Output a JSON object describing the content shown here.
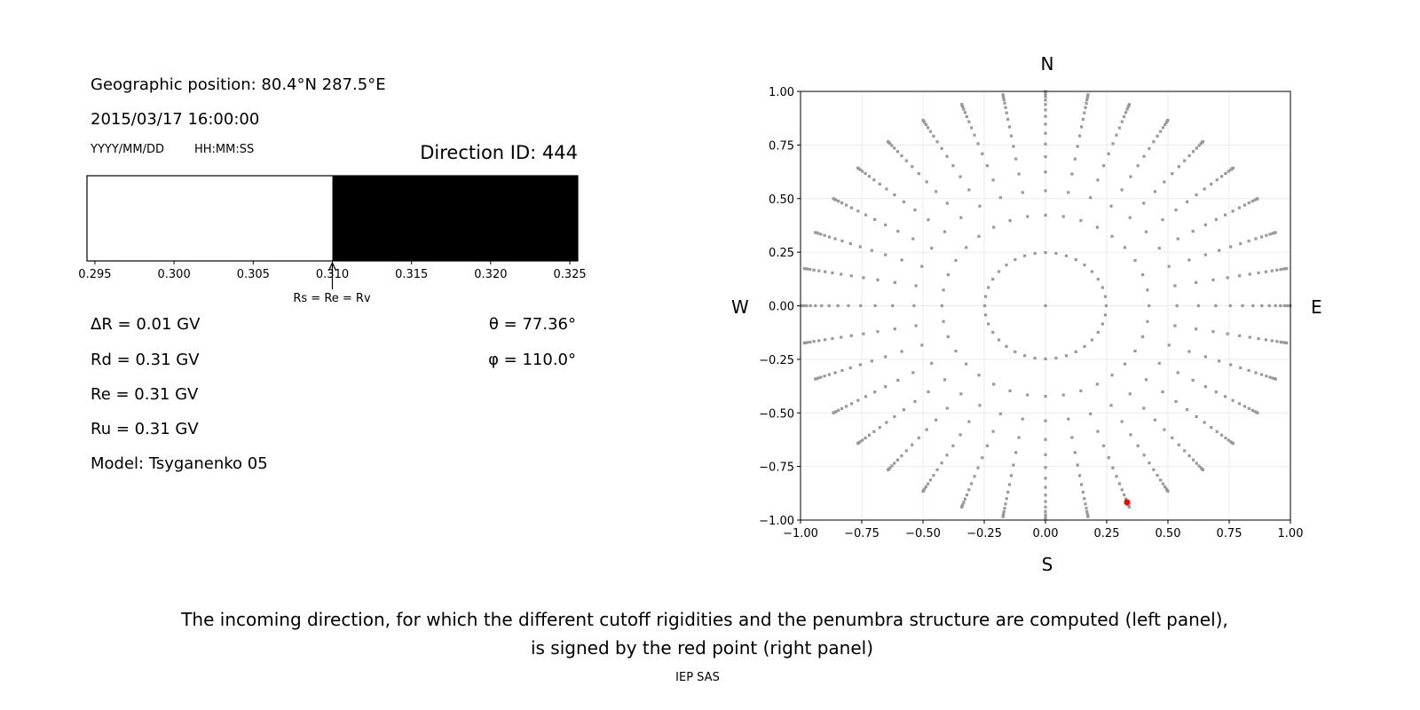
{
  "left_panel": {
    "geo_position": "Geographic position: 80.4°N 287.5°E",
    "datetime": "2015/03/17 16:00:00",
    "date_format": "YYYY/MM/DD",
    "time_format": "HH:MM:SS",
    "direction_id": "Direction ID: 444",
    "delta_r": "ΔR = 0.01 GV",
    "rd": "Rd = 0.31 GV",
    "re": "Re = 0.31 GV",
    "ru": "Ru = 0.31 GV",
    "model": "Model: Tsyganenko 05",
    "theta": "θ = 77.36°",
    "phi": "φ = 110.0°",
    "arrow_label": "Rs = Re = Rv"
  },
  "caption": {
    "line1": "The incoming direction, for which the different cutoff rigidities and the penumbra structure are computed (left panel),",
    "line2": "is signed by the red point (right panel)",
    "credit": "IEP SAS"
  },
  "chart_data": [
    {
      "type": "bar",
      "xlim": [
        0.2945,
        0.3255
      ],
      "tick_labels": [
        "0.295",
        "0.300",
        "0.305",
        "0.310",
        "0.315",
        "0.320",
        "0.325"
      ],
      "ticks": [
        0.295,
        0.3,
        0.305,
        0.31,
        0.315,
        0.32,
        0.325
      ],
      "segments": [
        {
          "from": 0.2945,
          "to": 0.31,
          "color": "#ffffff"
        },
        {
          "from": 0.31,
          "to": 0.3255,
          "color": "#000000"
        }
      ],
      "arrow_at": 0.31
    },
    {
      "type": "scatter",
      "xlim": [
        -1.0,
        1.0
      ],
      "ylim": [
        -1.0,
        1.0
      ],
      "grid": true,
      "tick_labels_x": [
        "−1.00",
        "−0.75",
        "−0.50",
        "−0.25",
        "0.00",
        "0.25",
        "0.50",
        "0.75",
        "1.00"
      ],
      "tick_labels_y": [
        "−1.00",
        "−0.75",
        "−0.50",
        "−0.25",
        "0.00",
        "0.25",
        "0.50",
        "0.75",
        "1.00"
      ],
      "ticks": [
        -1.0,
        -0.75,
        -0.5,
        -0.25,
        0,
        0.25,
        0.5,
        0.75,
        1.0
      ],
      "compass": {
        "north": "N",
        "south": "S",
        "west": "W",
        "east": "E"
      },
      "grid_points": {
        "azimuth_step_deg": 10,
        "cos_zenith": [
          0.96875,
          0.90625,
          0.84375,
          0.78125,
          0.71875,
          0.65625,
          0.59375,
          0.53125,
          0.46875,
          0.40625,
          0.34375,
          0.28125,
          0.21875,
          0.15625,
          0.09375,
          0.03125
        ],
        "include_center": true,
        "color": "#999999"
      },
      "selected_point": {
        "x": 0.333,
        "y": -0.917,
        "color": "#ff0000"
      }
    }
  ]
}
